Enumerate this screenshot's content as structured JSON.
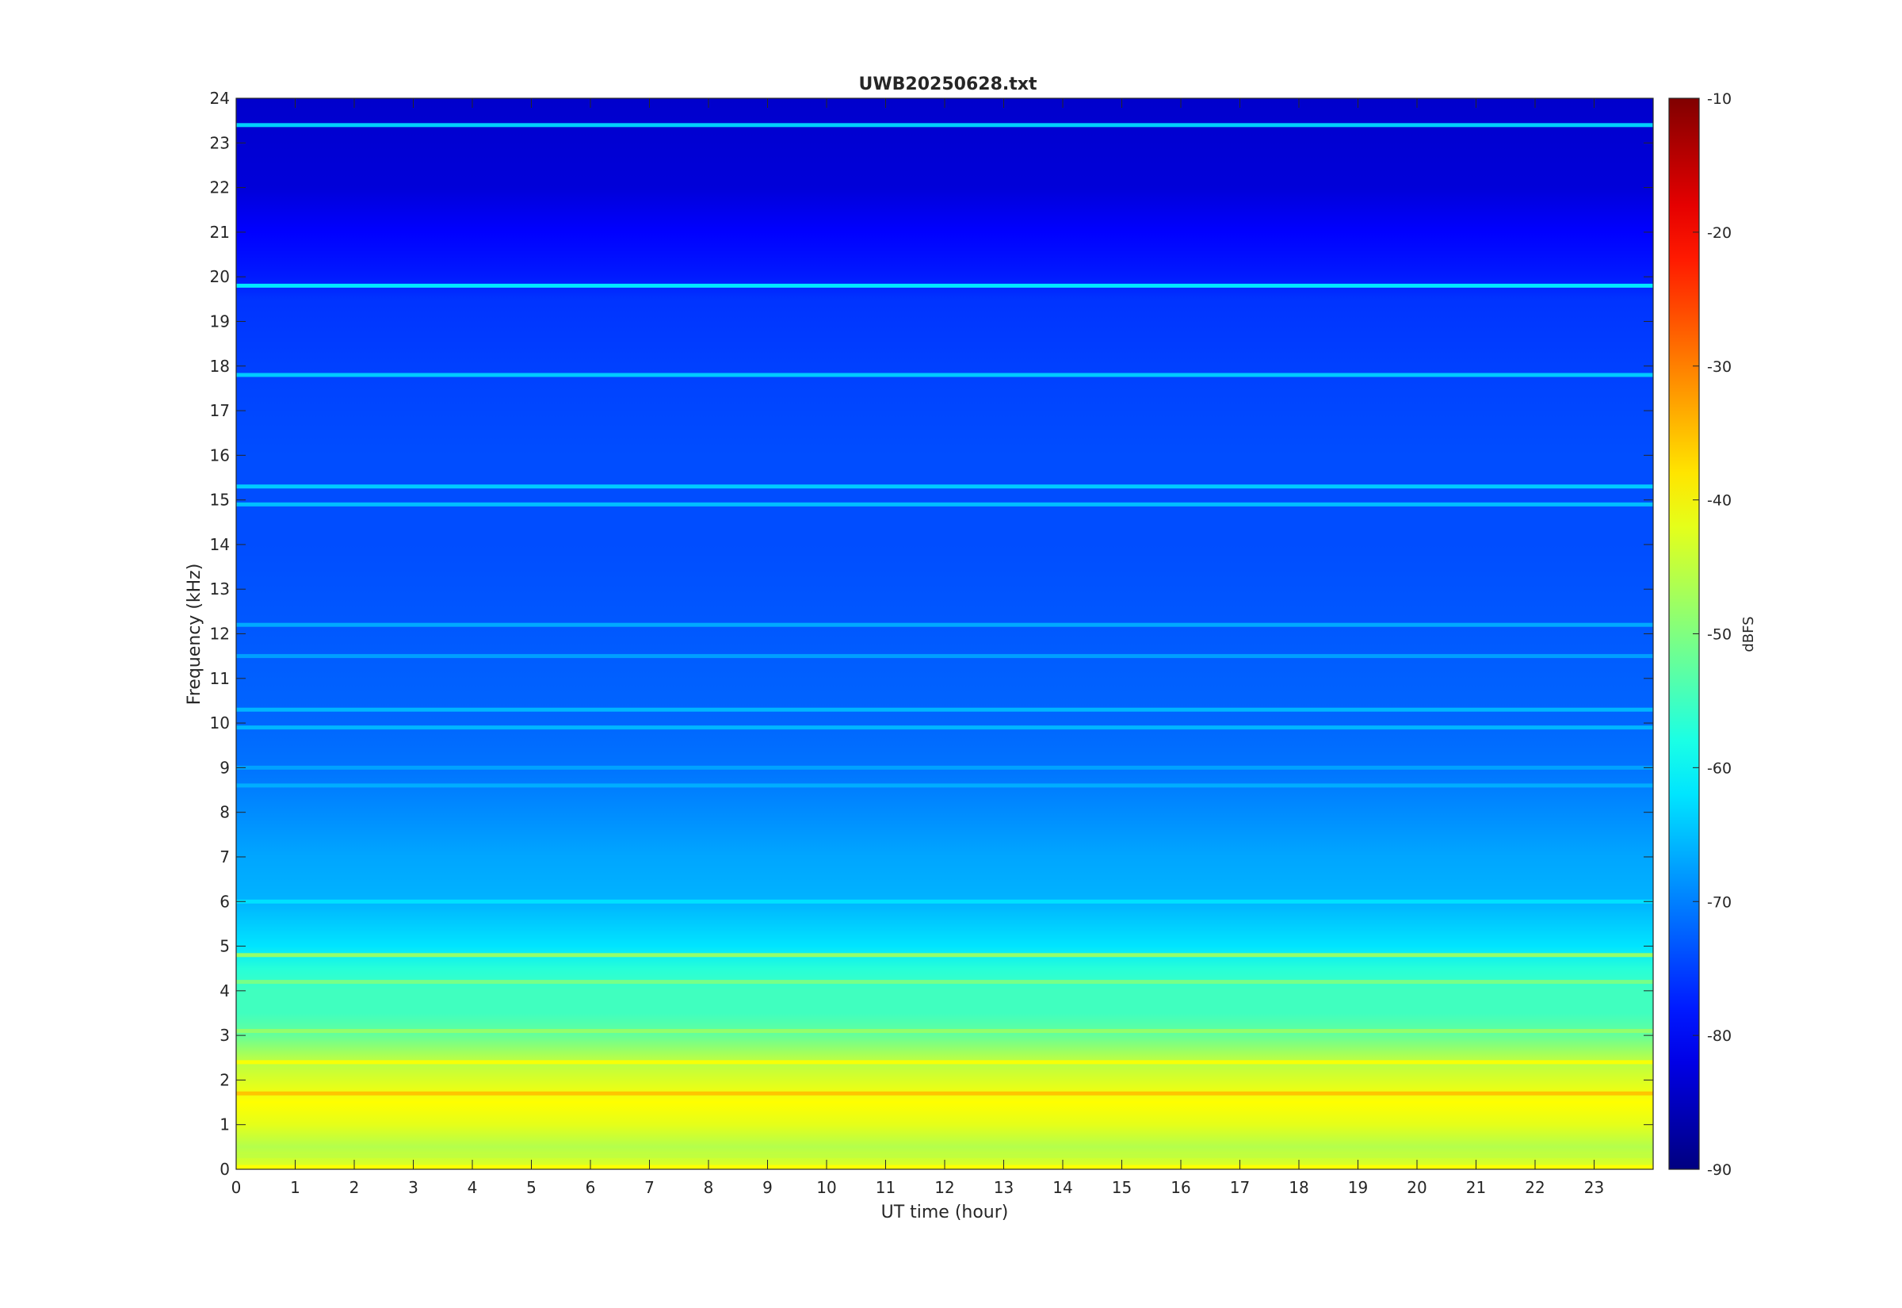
{
  "chart_data": {
    "type": "heatmap",
    "title": "UWB20250628.txt",
    "xlabel": "UT time (hour)",
    "ylabel": "Frequency (kHz)",
    "colorbar_label": "dBFS",
    "colormap": "jet",
    "xlim": [
      0,
      24
    ],
    "ylim": [
      0,
      24
    ],
    "clim": [
      -90,
      -10
    ],
    "x_ticks": [
      0,
      1,
      2,
      3,
      4,
      5,
      6,
      7,
      8,
      9,
      10,
      11,
      12,
      13,
      14,
      15,
      16,
      17,
      18,
      19,
      20,
      21,
      22,
      23
    ],
    "y_ticks": [
      0,
      1,
      2,
      3,
      4,
      5,
      6,
      7,
      8,
      9,
      10,
      11,
      12,
      13,
      14,
      15,
      16,
      17,
      18,
      19,
      20,
      21,
      22,
      23,
      24
    ],
    "colorbar_ticks": [
      -90,
      -80,
      -70,
      -60,
      -50,
      -40,
      -30,
      -20,
      -10
    ],
    "grid": false,
    "frequency_profile_dbfs": [
      {
        "f": 0.0,
        "v": -42
      },
      {
        "f": 0.5,
        "v": -46
      },
      {
        "f": 1.0,
        "v": -42
      },
      {
        "f": 1.5,
        "v": -40
      },
      {
        "f": 2.0,
        "v": -43
      },
      {
        "f": 2.5,
        "v": -46
      },
      {
        "f": 3.0,
        "v": -52
      },
      {
        "f": 3.5,
        "v": -55
      },
      {
        "f": 4.0,
        "v": -55
      },
      {
        "f": 4.5,
        "v": -57
      },
      {
        "f": 5.0,
        "v": -62
      },
      {
        "f": 5.5,
        "v": -64
      },
      {
        "f": 6.0,
        "v": -66
      },
      {
        "f": 7.0,
        "v": -67
      },
      {
        "f": 8.0,
        "v": -69
      },
      {
        "f": 9.0,
        "v": -71
      },
      {
        "f": 10.0,
        "v": -72
      },
      {
        "f": 12.0,
        "v": -73
      },
      {
        "f": 14.0,
        "v": -74
      },
      {
        "f": 16.0,
        "v": -74
      },
      {
        "f": 18.0,
        "v": -75
      },
      {
        "f": 19.5,
        "v": -76
      },
      {
        "f": 20.0,
        "v": -78
      },
      {
        "f": 21.0,
        "v": -80
      },
      {
        "f": 22.0,
        "v": -83
      },
      {
        "f": 24.0,
        "v": -84
      }
    ],
    "spectral_lines": [
      {
        "f": 19.8,
        "v": -60
      },
      {
        "f": 23.4,
        "v": -62
      },
      {
        "f": 17.8,
        "v": -63
      },
      {
        "f": 15.3,
        "v": -63
      },
      {
        "f": 14.9,
        "v": -64
      },
      {
        "f": 12.2,
        "v": -66
      },
      {
        "f": 11.5,
        "v": -67
      },
      {
        "f": 10.3,
        "v": -65
      },
      {
        "f": 9.9,
        "v": -65
      },
      {
        "f": 9.0,
        "v": -67
      },
      {
        "f": 8.6,
        "v": -66
      },
      {
        "f": 6.0,
        "v": -62
      },
      {
        "f": 4.8,
        "v": -47
      },
      {
        "f": 4.2,
        "v": -50
      },
      {
        "f": 3.1,
        "v": -48
      },
      {
        "f": 2.4,
        "v": -40
      },
      {
        "f": 1.7,
        "v": -35
      },
      {
        "f": 0.3,
        "v": -45
      },
      {
        "f": 0.05,
        "v": -40
      }
    ]
  }
}
